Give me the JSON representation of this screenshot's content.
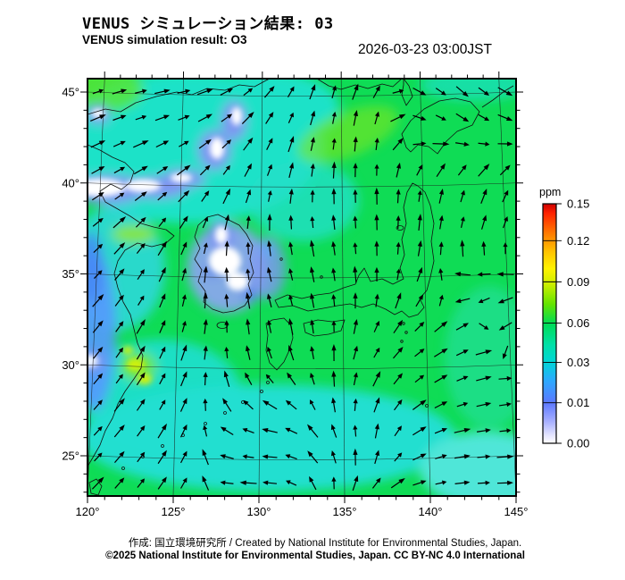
{
  "header": {
    "title_jp": "VENUS シミュレーション結果: 03",
    "title_en": "VENUS simulation result: O3",
    "timestamp": "2026-03-23 03:00JST"
  },
  "footer": {
    "credit_line": "作成: 国立環境研究所 / Created by National Institute for Environmental Studies, Japan.",
    "license_line": "©2025 National Institute for Environmental Studies, Japan. CC BY-NC 4.0 International"
  },
  "chart_data": {
    "type": "heatmap",
    "title": "VENUS simulation result: O3",
    "variable": "O3",
    "units": "ppm",
    "timestamp": "2026-03-23 03:00JST",
    "x_axis": {
      "ticks_deg": [
        120,
        125,
        130,
        135,
        140,
        145
      ],
      "labels": [
        "120°",
        "125°",
        "130°",
        "135°",
        "140°",
        "145°"
      ],
      "minor_step_deg": 1
    },
    "y_axis": {
      "ticks_deg": [
        45,
        40,
        35,
        30,
        25
      ],
      "labels": [
        "45°",
        "40°",
        "35°",
        "30°",
        "25°"
      ],
      "minor_step_deg": 1
    },
    "colorbar": {
      "label": "ppm",
      "tick_labels": [
        "0.15",
        "0.12",
        "0.09",
        "0.06",
        "0.03",
        "0.01",
        "0.00"
      ],
      "tick_fractions_from_top": [
        0,
        0.154,
        0.326,
        0.498,
        0.662,
        0.831,
        1.0
      ],
      "gradient_top_to_bottom": [
        {
          "offset": 0.0,
          "color": "#cc0000"
        },
        {
          "offset": 0.04,
          "color": "#ff2200"
        },
        {
          "offset": 0.12,
          "color": "#ff7700"
        },
        {
          "offset": 0.2,
          "color": "#ffc300"
        },
        {
          "offset": 0.27,
          "color": "#fff200"
        },
        {
          "offset": 0.34,
          "color": "#c8ee00"
        },
        {
          "offset": 0.42,
          "color": "#63e400"
        },
        {
          "offset": 0.5,
          "color": "#00dc55"
        },
        {
          "offset": 0.59,
          "color": "#00e0a8"
        },
        {
          "offset": 0.66,
          "color": "#00d6d6"
        },
        {
          "offset": 0.74,
          "color": "#2da8ff"
        },
        {
          "offset": 0.83,
          "color": "#5c78ff"
        },
        {
          "offset": 0.91,
          "color": "#a8b0ff"
        },
        {
          "offset": 0.97,
          "color": "#e8e8ff"
        },
        {
          "offset": 1.0,
          "color": "#ffffff"
        }
      ]
    },
    "field_summary": [
      {
        "region": "most of domain (Japan, Sea of Japan, Pacific)",
        "o3_ppm": "~0.05-0.07 (green)"
      },
      {
        "region": "upper-left quadrant, NE China / northern Sea of Japan",
        "o3_ppm": "~0.03-0.04 (cyan)"
      },
      {
        "region": "band near 40N on west side and over central Korea",
        "o3_ppm": "~0.00-0.01 (white/pale blue)"
      },
      {
        "region": "Chinese coast 28-35N",
        "o3_ppm": "~0.01-0.02 (blue)"
      },
      {
        "region": "spots on coast near Shanghai",
        "o3_ppm": "~0.09-0.10 (yellow)"
      },
      {
        "region": "southern ocean band and lower-right corner",
        "o3_ppm": "~0.04 (cyan-green)"
      }
    ],
    "wind_field": {
      "note": "arrow directions sampled on coarse grid; degrees CCW from east (up = 90)",
      "grid_cols": 10,
      "grid_rows": 9,
      "angles": [
        [
          20,
          12,
          8,
          25,
          50,
          75,
          60,
          -35,
          -45,
          -30
        ],
        [
          25,
          20,
          25,
          40,
          65,
          80,
          85,
          -15,
          -30,
          -15
        ],
        [
          30,
          32,
          40,
          60,
          75,
          88,
          92,
          80,
          70,
          60
        ],
        [
          40,
          48,
          62,
          85,
          97,
          100,
          92,
          85,
          78,
          70
        ],
        [
          45,
          55,
          78,
          98,
          107,
          100,
          92,
          65,
          205,
          195
        ],
        [
          50,
          58,
          72,
          92,
          102,
          95,
          60,
          38,
          25,
          215
        ],
        [
          48,
          55,
          65,
          115,
          145,
          100,
          68,
          38,
          18,
          8
        ],
        [
          45,
          52,
          62,
          165,
          178,
          120,
          88,
          28,
          8,
          4
        ],
        [
          45,
          50,
          58,
          182,
          172,
          92,
          45,
          14,
          4,
          0
        ]
      ]
    },
    "colors": {
      "background": "#ffffff",
      "map_green": "#0fdc55",
      "map_cyan": "#1fe2c8",
      "low_white": "#ffffff",
      "low_blue": "#7f96f2",
      "coast_blue": "#4488f4",
      "high_yellow": "#cdf00a",
      "arrow": "#000000"
    }
  }
}
